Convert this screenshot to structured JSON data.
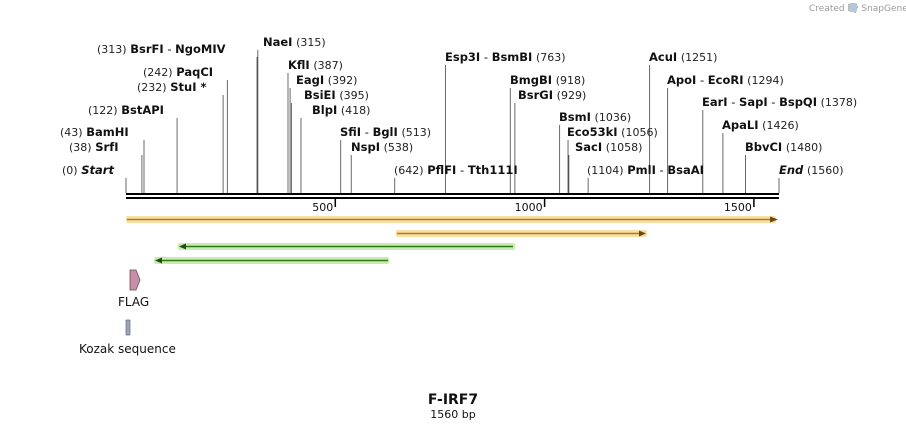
{
  "credit": "Created by SnapGene",
  "map": {
    "name": "F-IRF7",
    "length_label": "1560 bp",
    "length_bp": 1560,
    "ticks": [
      500,
      1000,
      1500
    ]
  },
  "sites": [
    {
      "row": 0,
      "pos": "(313)",
      "parts": [
        "BsrFI",
        "-",
        "NgoMIV"
      ],
      "bp": 313
    },
    {
      "row": 0,
      "pos": "(315)",
      "parts": [
        "NaeI"
      ],
      "bp": 315
    },
    {
      "row": 1,
      "pos": "(387)",
      "parts": [
        "KflI"
      ],
      "bp": 387
    },
    {
      "row": 1,
      "pos": "(392)",
      "parts": [
        "EagI"
      ],
      "bp": 392
    },
    {
      "row": 1,
      "pos": "(395)",
      "parts": [
        "BsiEI"
      ],
      "bp": 395
    },
    {
      "row": 1,
      "pos": "(418)",
      "parts": [
        "BlpI"
      ],
      "bp": 418
    },
    {
      "row": 2,
      "pos": "(242)",
      "parts": [
        "PaqCI"
      ],
      "bp": 242
    },
    {
      "row": 2,
      "pos": "(232)",
      "parts": [
        "StuI *"
      ],
      "bp": 232
    },
    {
      "row": 2,
      "pos": "(122)",
      "parts": [
        "BstAPI"
      ],
      "bp": 122
    },
    {
      "row": 2,
      "pos": "(43)",
      "parts": [
        "BamHI"
      ],
      "bp": 43
    },
    {
      "row": 2,
      "pos": "(38)",
      "parts": [
        "SrfI"
      ],
      "bp": 38
    },
    {
      "row": 2,
      "pos": "(0)",
      "parts": [
        "Start"
      ],
      "bp": 0
    },
    {
      "row": 3,
      "pos": "(513)",
      "parts": [
        "SfiI",
        "-",
        "BglI"
      ],
      "bp": 513
    },
    {
      "row": 3,
      "pos": "(538)",
      "parts": [
        "NspI"
      ],
      "bp": 538
    },
    {
      "row": 3,
      "pos": "(763)",
      "parts": [
        "Esp3I",
        "-",
        "BsmBI"
      ],
      "bp": 763
    },
    {
      "row": 3,
      "pos": "(642)",
      "parts": [
        "PflFI",
        "-",
        "Tth111I"
      ],
      "bp": 642
    },
    {
      "row": 3,
      "pos": "(918)",
      "parts": [
        "BmgBI"
      ],
      "bp": 918
    },
    {
      "row": 3,
      "pos": "(929)",
      "parts": [
        "BsrGI"
      ],
      "bp": 929
    },
    {
      "row": 4,
      "pos": "(1036)",
      "parts": [
        "BsmI"
      ],
      "bp": 1036
    },
    {
      "row": 4,
      "pos": "(1056)",
      "parts": [
        "Eco53kI"
      ],
      "bp": 1056
    },
    {
      "row": 4,
      "pos": "(1058)",
      "parts": [
        "SacI"
      ],
      "bp": 1058
    },
    {
      "row": 4,
      "pos": "(1104)",
      "parts": [
        "PmlI",
        "-",
        "BsaAI"
      ],
      "bp": 1104
    },
    {
      "row": 4,
      "pos": "(1251)",
      "parts": [
        "AcuI"
      ],
      "bp": 1251
    },
    {
      "row": 4,
      "pos": "(1294)",
      "parts": [
        "ApoI",
        "-",
        "EcoRI"
      ],
      "bp": 1294
    },
    {
      "row": 4,
      "pos": "(1378)",
      "parts": [
        "EarI",
        "-",
        "SapI",
        "-",
        "BspQI"
      ],
      "bp": 1378
    },
    {
      "row": 4,
      "pos": "(1426)",
      "parts": [
        "ApaLI"
      ],
      "bp": 1426
    },
    {
      "row": 4,
      "pos": "(1480)",
      "parts": [
        "BbvCI"
      ],
      "bp": 1480
    },
    {
      "row": 4,
      "pos": "(1560)",
      "parts": [
        "End"
      ],
      "bp": 1560
    }
  ],
  "features": [
    {
      "name": "FLAG",
      "type": "tag",
      "color": "#c890a8"
    },
    {
      "name": "Kozak sequence",
      "type": "misc",
      "color": "#a0a4b8"
    }
  ],
  "orfs": [
    {
      "color": "#f0b838",
      "direction": "forward"
    },
    {
      "color": "#f0b838",
      "direction": "forward"
    },
    {
      "color": "#7cc850",
      "direction": "reverse"
    },
    {
      "color": "#7cc850",
      "direction": "reverse"
    }
  ],
  "colors": {
    "backbone": "#000000",
    "orf_yellow": "#f0b838",
    "orf_green": "#7cc850",
    "flag": "#c890a8",
    "kozak": "#a0a4b8"
  }
}
